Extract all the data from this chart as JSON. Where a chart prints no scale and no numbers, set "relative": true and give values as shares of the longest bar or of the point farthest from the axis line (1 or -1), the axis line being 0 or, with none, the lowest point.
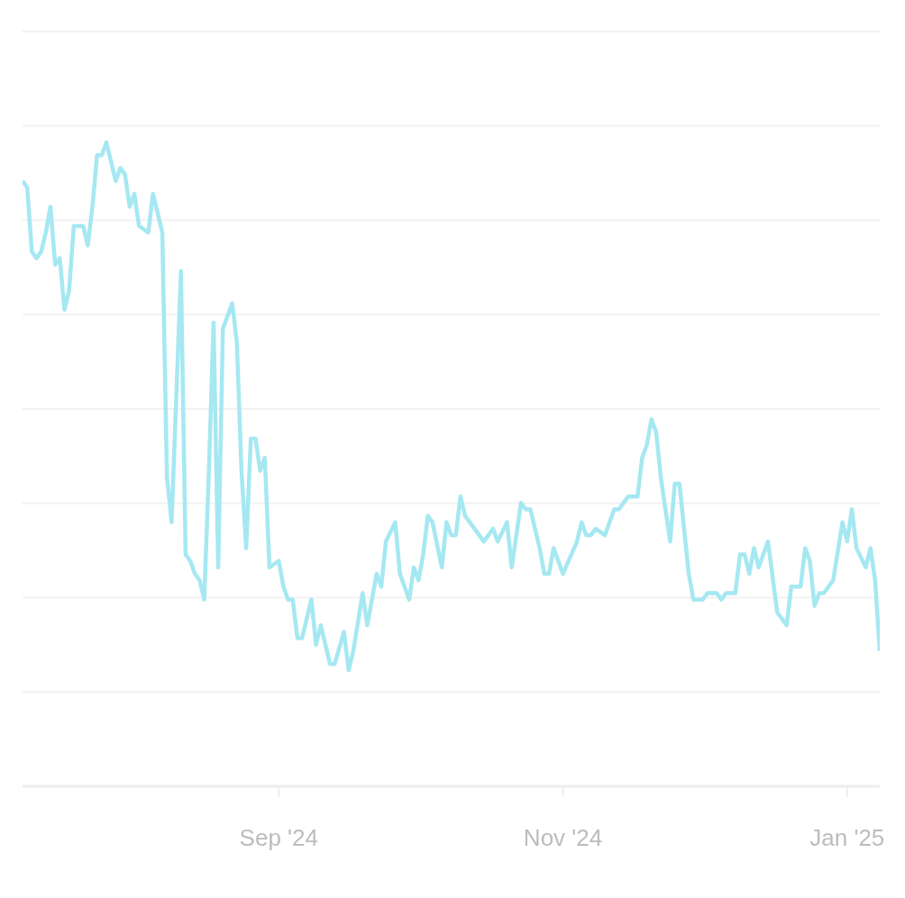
{
  "chart_data": {
    "type": "line",
    "relative": true,
    "grid": "y",
    "marker": "none",
    "line_style": "solid",
    "legend": false,
    "xlim": [
      "2024-07-08",
      "2025-01-08"
    ],
    "xticks": [
      {
        "value": "2024-09-01",
        "label": "Sep '24"
      },
      {
        "value": "2024-11-01",
        "label": "Nov '24"
      },
      {
        "value": "2025-01-01",
        "label": "Jan '25"
      }
    ],
    "x": [
      "2024-07-08",
      "2024-07-09",
      "2024-07-10",
      "2024-07-11",
      "2024-07-12",
      "2024-07-13",
      "2024-07-14",
      "2024-07-15",
      "2024-07-16",
      "2024-07-17",
      "2024-07-18",
      "2024-07-19",
      "2024-07-21",
      "2024-07-22",
      "2024-07-23",
      "2024-07-24",
      "2024-07-25",
      "2024-07-26",
      "2024-07-27",
      "2024-07-28",
      "2024-07-29",
      "2024-07-30",
      "2024-07-31",
      "2024-08-01",
      "2024-08-02",
      "2024-08-04",
      "2024-08-05",
      "2024-08-06",
      "2024-08-07",
      "2024-08-08",
      "2024-08-09",
      "2024-08-11",
      "2024-08-12",
      "2024-08-13",
      "2024-08-14",
      "2024-08-15",
      "2024-08-16",
      "2024-08-17",
      "2024-08-18",
      "2024-08-19",
      "2024-08-20",
      "2024-08-21",
      "2024-08-22",
      "2024-08-23",
      "2024-08-24",
      "2024-08-25",
      "2024-08-26",
      "2024-08-27",
      "2024-08-28",
      "2024-08-29",
      "2024-08-30",
      "2024-09-01",
      "2024-09-02",
      "2024-09-03",
      "2024-09-04",
      "2024-09-05",
      "2024-09-06",
      "2024-09-08",
      "2024-09-09",
      "2024-09-10",
      "2024-09-12",
      "2024-09-13",
      "2024-09-15",
      "2024-09-16",
      "2024-09-17",
      "2024-09-19",
      "2024-09-20",
      "2024-09-22",
      "2024-09-23",
      "2024-09-24",
      "2024-09-26",
      "2024-09-27",
      "2024-09-29",
      "2024-09-30",
      "2024-10-01",
      "2024-10-02",
      "2024-10-03",
      "2024-10-04",
      "2024-10-06",
      "2024-10-07",
      "2024-10-08",
      "2024-10-09",
      "2024-10-10",
      "2024-10-11",
      "2024-10-14",
      "2024-10-15",
      "2024-10-16",
      "2024-10-17",
      "2024-10-18",
      "2024-10-20",
      "2024-10-21",
      "2024-10-23",
      "2024-10-24",
      "2024-10-25",
      "2024-10-27",
      "2024-10-28",
      "2024-10-29",
      "2024-10-30",
      "2024-11-01",
      "2024-11-04",
      "2024-11-05",
      "2024-11-06",
      "2024-11-07",
      "2024-11-08",
      "2024-11-10",
      "2024-11-12",
      "2024-11-13",
      "2024-11-14",
      "2024-11-15",
      "2024-11-17",
      "2024-11-18",
      "2024-11-19",
      "2024-11-20",
      "2024-11-21",
      "2024-11-22",
      "2024-11-24",
      "2024-11-25",
      "2024-11-26",
      "2024-11-28",
      "2024-11-29",
      "2024-12-01",
      "2024-12-02",
      "2024-12-04",
      "2024-12-05",
      "2024-12-06",
      "2024-12-08",
      "2024-12-09",
      "2024-12-10",
      "2024-12-11",
      "2024-12-12",
      "2024-12-13",
      "2024-12-15",
      "2024-12-17",
      "2024-12-19",
      "2024-12-20",
      "2024-12-22",
      "2024-12-23",
      "2024-12-24",
      "2024-12-25",
      "2024-12-26",
      "2024-12-27",
      "2024-12-29",
      "2024-12-31",
      "2025-01-01",
      "2025-01-02",
      "2025-01-03",
      "2025-01-05",
      "2025-01-06",
      "2025-01-07",
      "2025-01-08"
    ],
    "series": [
      {
        "color": "#a5e8f2",
        "values": [
          0.94,
          0.93,
          0.83,
          0.82,
          0.83,
          0.86,
          0.9,
          0.81,
          0.82,
          0.74,
          0.77,
          0.87,
          0.87,
          0.84,
          0.9,
          0.98,
          0.98,
          1.0,
          0.97,
          0.94,
          0.96,
          0.95,
          0.9,
          0.92,
          0.87,
          0.86,
          0.92,
          0.89,
          0.86,
          0.48,
          0.41,
          0.8,
          0.36,
          0.35,
          0.33,
          0.32,
          0.29,
          0.49,
          0.72,
          0.34,
          0.71,
          0.73,
          0.75,
          0.69,
          0.49,
          0.37,
          0.54,
          0.54,
          0.49,
          0.51,
          0.34,
          0.35,
          0.31,
          0.29,
          0.29,
          0.23,
          0.23,
          0.29,
          0.22,
          0.25,
          0.19,
          0.19,
          0.24,
          0.18,
          0.21,
          0.3,
          0.25,
          0.33,
          0.31,
          0.38,
          0.41,
          0.33,
          0.29,
          0.34,
          0.32,
          0.36,
          0.42,
          0.41,
          0.34,
          0.41,
          0.39,
          0.39,
          0.45,
          0.42,
          0.39,
          0.38,
          0.39,
          0.4,
          0.38,
          0.41,
          0.34,
          0.44,
          0.43,
          0.43,
          0.37,
          0.33,
          0.33,
          0.37,
          0.33,
          0.38,
          0.41,
          0.39,
          0.39,
          0.4,
          0.39,
          0.43,
          0.43,
          0.44,
          0.45,
          0.45,
          0.51,
          0.53,
          0.57,
          0.55,
          0.48,
          0.38,
          0.47,
          0.47,
          0.33,
          0.29,
          0.29,
          0.3,
          0.3,
          0.29,
          0.3,
          0.3,
          0.36,
          0.36,
          0.33,
          0.37,
          0.34,
          0.38,
          0.27,
          0.25,
          0.31,
          0.31,
          0.37,
          0.35,
          0.28,
          0.3,
          0.3,
          0.32,
          0.41,
          0.38,
          0.43,
          0.37,
          0.34,
          0.37,
          0.32,
          0.21
        ]
      }
    ]
  }
}
